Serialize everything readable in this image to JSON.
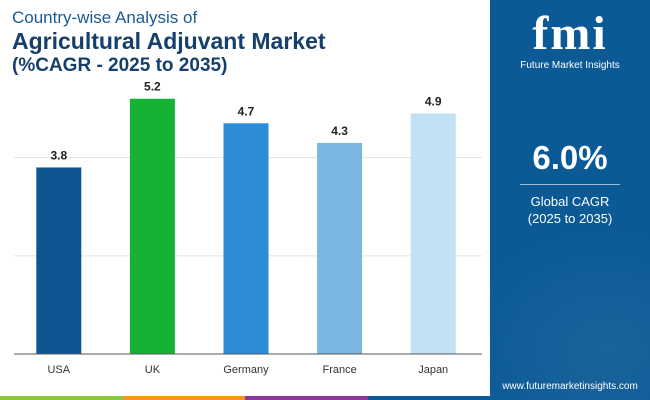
{
  "header": {
    "line1": "Country-wise Analysis of",
    "line2": "Agricultural Adjuvant Market",
    "line3": "(%CAGR - 2025 to 2035)"
  },
  "brand": {
    "logo_mark": "fmi",
    "name": "Future Market Insights",
    "url": "www.futuremarketinsights.com"
  },
  "stat": {
    "value": "6.0%",
    "label_line1": "Global CAGR",
    "label_line2": "(2025 to 2035)"
  },
  "colors": {
    "panel": "#0b5a96",
    "footer": [
      "#8cc63f",
      "#f7941d",
      "#8b3a9a",
      "#0b5a96"
    ]
  },
  "chart_data": {
    "type": "bar",
    "categories": [
      "USA",
      "UK",
      "Germany",
      "France",
      "Japan"
    ],
    "values": [
      3.8,
      5.2,
      4.7,
      4.3,
      4.9
    ],
    "data_labels": [
      "3.8",
      "5.2",
      "4.7",
      "4.3",
      "4.9"
    ],
    "colors": [
      "#0d5591",
      "#16b236",
      "#2d8cd6",
      "#7ab8e2",
      "#c3e1f5"
    ],
    "ylim": [
      0,
      5.5
    ],
    "grid": true,
    "title": "",
    "xlabel": "",
    "ylabel": ""
  }
}
